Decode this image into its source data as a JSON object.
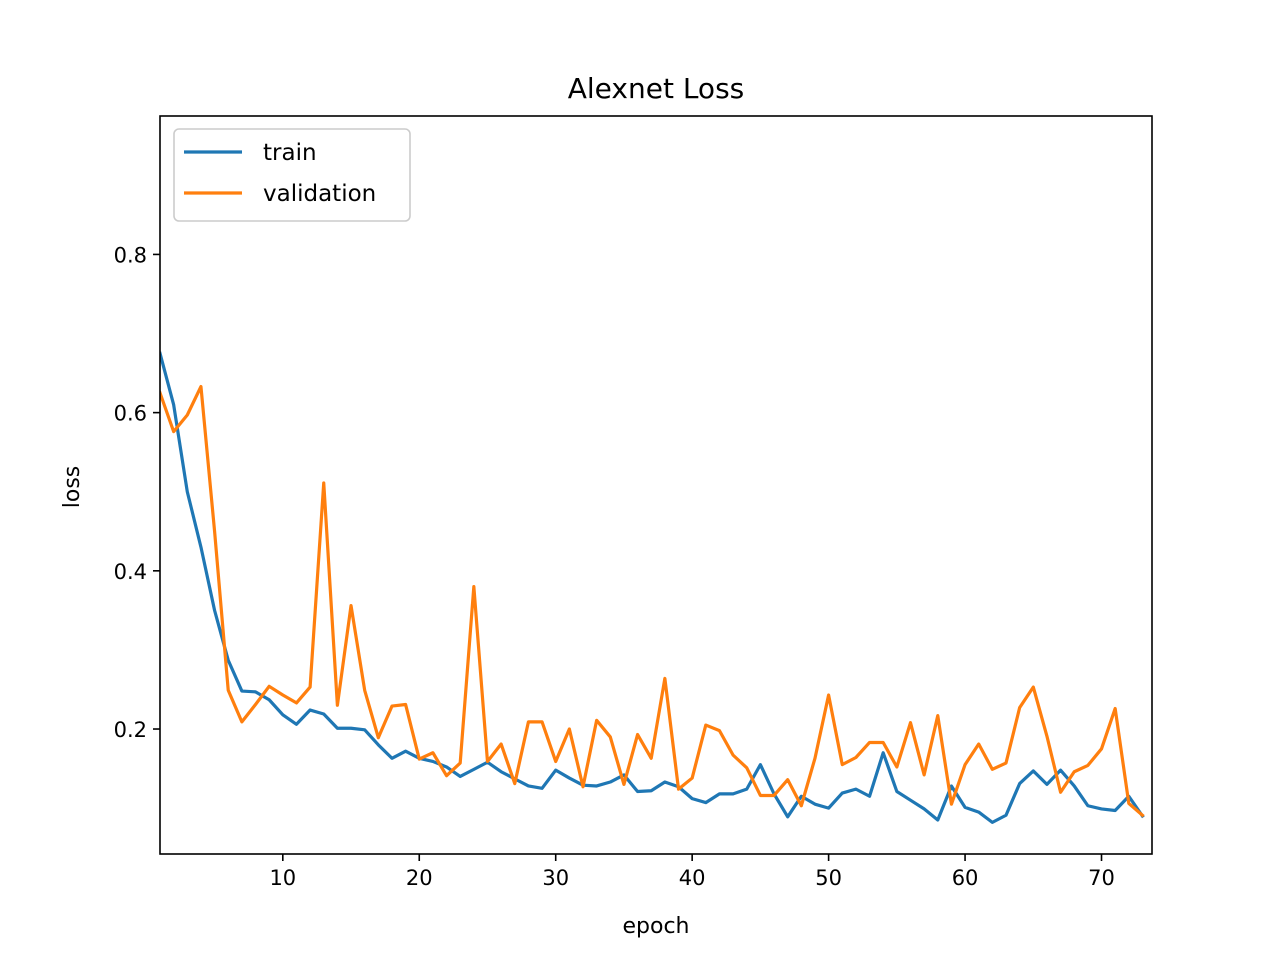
{
  "chart_data": {
    "type": "line",
    "title": "Alexnet Loss",
    "xlabel": "epoch",
    "ylabel": "loss",
    "xlim": [
      1,
      73.7
    ],
    "ylim": [
      0.042,
      0.975
    ],
    "xticks": [
      10,
      20,
      30,
      40,
      50,
      60,
      70
    ],
    "yticks": [
      0.2,
      0.4,
      0.6,
      0.8
    ],
    "ytick_labels": [
      "0.2",
      "0.4",
      "0.6",
      "0.8"
    ],
    "grid": false,
    "legend_position": "upper-left",
    "x": [
      1,
      2,
      3,
      4,
      5,
      6,
      7,
      8,
      9,
      10,
      11,
      12,
      13,
      14,
      15,
      16,
      17,
      18,
      19,
      20,
      21,
      22,
      23,
      24,
      25,
      26,
      27,
      28,
      29,
      30,
      31,
      32,
      33,
      34,
      35,
      36,
      37,
      38,
      39,
      40,
      41,
      42,
      43,
      44,
      45,
      46,
      47,
      48,
      49,
      50,
      51,
      52,
      53,
      54,
      55,
      56,
      57,
      58,
      59,
      60,
      61,
      62,
      63,
      64,
      65,
      66,
      67,
      68,
      69,
      70,
      71,
      72,
      73
    ],
    "series": [
      {
        "name": "train",
        "color": "#1f77b4",
        "values": [
          0.675,
          0.61,
          0.5,
          0.43,
          0.35,
          0.287,
          0.248,
          0.247,
          0.237,
          0.218,
          0.206,
          0.224,
          0.219,
          0.201,
          0.201,
          0.199,
          0.18,
          0.163,
          0.172,
          0.163,
          0.159,
          0.152,
          0.14,
          0.149,
          0.158,
          0.146,
          0.137,
          0.128,
          0.125,
          0.148,
          0.138,
          0.129,
          0.128,
          0.133,
          0.142,
          0.121,
          0.122,
          0.133,
          0.127,
          0.112,
          0.107,
          0.118,
          0.118,
          0.124,
          0.155,
          0.118,
          0.089,
          0.115,
          0.105,
          0.1,
          0.119,
          0.124,
          0.115,
          0.17,
          0.121,
          0.11,
          0.099,
          0.085,
          0.128,
          0.101,
          0.095,
          0.082,
          0.091,
          0.131,
          0.147,
          0.13,
          0.148,
          0.128,
          0.103,
          0.099,
          0.097,
          0.115,
          0.09
        ]
      },
      {
        "name": "validation",
        "color": "#ff7f0e",
        "values": [
          0.625,
          0.576,
          0.597,
          0.633,
          0.45,
          0.249,
          0.209,
          0.231,
          0.254,
          0.243,
          0.233,
          0.253,
          0.511,
          0.23,
          0.356,
          0.249,
          0.189,
          0.229,
          0.231,
          0.162,
          0.17,
          0.141,
          0.157,
          0.38,
          0.159,
          0.181,
          0.131,
          0.209,
          0.209,
          0.159,
          0.2,
          0.127,
          0.211,
          0.19,
          0.13,
          0.193,
          0.163,
          0.264,
          0.124,
          0.138,
          0.205,
          0.198,
          0.167,
          0.151,
          0.116,
          0.116,
          0.136,
          0.103,
          0.163,
          0.243,
          0.155,
          0.164,
          0.183,
          0.183,
          0.152,
          0.208,
          0.142,
          0.217,
          0.105,
          0.155,
          0.181,
          0.149,
          0.157,
          0.227,
          0.253,
          0.191,
          0.12,
          0.146,
          0.154,
          0.175,
          0.226,
          0.106,
          0.091
        ]
      }
    ]
  }
}
